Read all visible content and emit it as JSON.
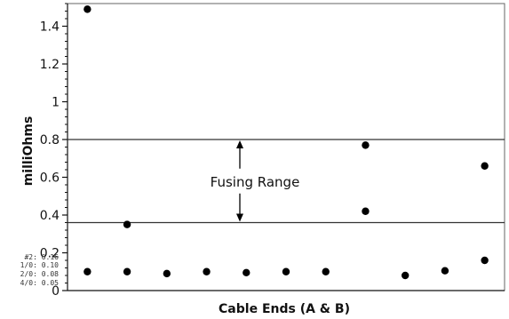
{
  "chart_data": {
    "type": "scatter",
    "xlabel": "Cable Ends (A & B)",
    "ylabel": "milliOhms",
    "ylim": [
      0,
      1.52
    ],
    "y_ticks": [
      0,
      0.2,
      0.4,
      0.6,
      0.8,
      1,
      1.2,
      1.4
    ],
    "x_ticks": [],
    "grid": false,
    "series": [
      {
        "values": [
          1.49,
          0.1,
          0.35,
          0.1,
          0.09,
          0.1,
          0.095,
          0.1,
          0.1,
          0.77,
          0.42,
          0.08,
          0.105,
          0.66,
          0.16
        ]
      }
    ],
    "points": [
      {
        "x": 1,
        "y": 1.49
      },
      {
        "x": 1,
        "y": 0.1
      },
      {
        "x": 2,
        "y": 0.35
      },
      {
        "x": 2,
        "y": 0.1
      },
      {
        "x": 3,
        "y": 0.09
      },
      {
        "x": 4,
        "y": 0.1
      },
      {
        "x": 5,
        "y": 0.095
      },
      {
        "x": 6,
        "y": 0.1
      },
      {
        "x": 7,
        "y": 0.1
      },
      {
        "x": 8,
        "y": 0.77
      },
      {
        "x": 8,
        "y": 0.42
      },
      {
        "x": 9,
        "y": 0.08
      },
      {
        "x": 10,
        "y": 0.105
      },
      {
        "x": 11,
        "y": 0.66
      },
      {
        "x": 11,
        "y": 0.16
      }
    ],
    "x_range": [
      0.5,
      11.5
    ],
    "reference_lines": [
      {
        "y": 0.8
      },
      {
        "y": 0.36
      }
    ],
    "annotations": [
      {
        "text": "Fusing Range",
        "from_y": 0.8,
        "to_y": 0.36
      }
    ],
    "legend_entries": [
      "#2: 0.16",
      "1/0: 0.10",
      "2/0: 0.08",
      "4/0: 0.05"
    ],
    "colors": {
      "marker": "#000000",
      "axis": "#111111",
      "frame": "#666666",
      "background": "#ffffff"
    }
  }
}
